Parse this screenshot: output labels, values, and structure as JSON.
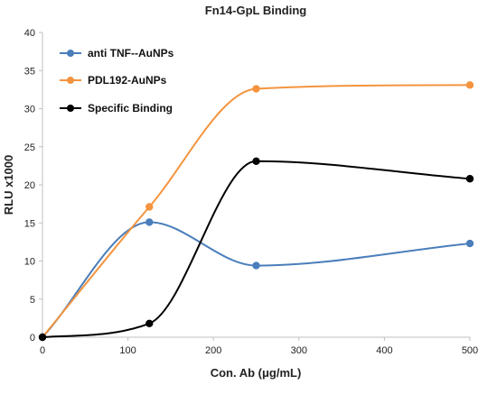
{
  "chart_data": {
    "type": "line",
    "title": "Fn14-GpL Binding",
    "xlabel": "Con. Ab (μg/mL)",
    "ylabel": "RLU  x1000",
    "xlim": [
      0,
      500
    ],
    "ylim": [
      0,
      40
    ],
    "xticks": [
      0,
      100,
      200,
      300,
      400,
      500
    ],
    "yticks": [
      0,
      5,
      10,
      15,
      20,
      25,
      30,
      35,
      40
    ],
    "grid": false,
    "legend_position": "top-left",
    "series": [
      {
        "name": "anti TNF--AuNPs",
        "color": "#4a7ebb",
        "x": [
          0,
          125,
          250,
          500
        ],
        "y": [
          0,
          15.1,
          9.4,
          12.3
        ]
      },
      {
        "name": "PDL192-AuNPs",
        "color": "#f4943f",
        "x": [
          0,
          125,
          250,
          500
        ],
        "y": [
          0,
          17.1,
          32.6,
          33.1
        ]
      },
      {
        "name": "Specific Binding",
        "color": "#000000",
        "x": [
          0,
          125,
          250,
          500
        ],
        "y": [
          0,
          1.8,
          23.1,
          20.8
        ]
      }
    ]
  }
}
